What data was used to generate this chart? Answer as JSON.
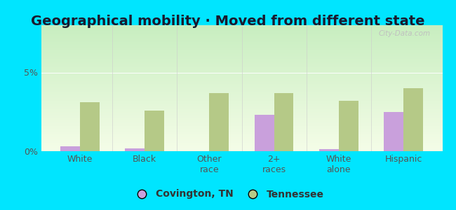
{
  "title": "Geographical mobility · Moved from different state",
  "categories": [
    "White",
    "Black",
    "Other\nrace",
    "2+\nraces",
    "White\nalone",
    "Hispanic"
  ],
  "covington_values": [
    0.3,
    0.2,
    0.0,
    2.3,
    0.15,
    2.5
  ],
  "tennessee_values": [
    3.1,
    2.6,
    3.7,
    3.7,
    3.2,
    4.0
  ],
  "covington_color": "#c9a0dc",
  "tennessee_color": "#b5c987",
  "ylim": [
    0,
    8
  ],
  "yticks": [
    0,
    5
  ],
  "ytick_labels": [
    "0%",
    "5%"
  ],
  "bg_top_left": "#c8eec8",
  "bg_bottom_right": "#f5fde8",
  "outer_bg": "#00e5ff",
  "legend_label1": "Covington, TN",
  "legend_label2": "Tennessee",
  "watermark": "City-Data.com",
  "bar_width": 0.3,
  "title_fontsize": 14,
  "tick_fontsize": 9,
  "legend_fontsize": 10
}
